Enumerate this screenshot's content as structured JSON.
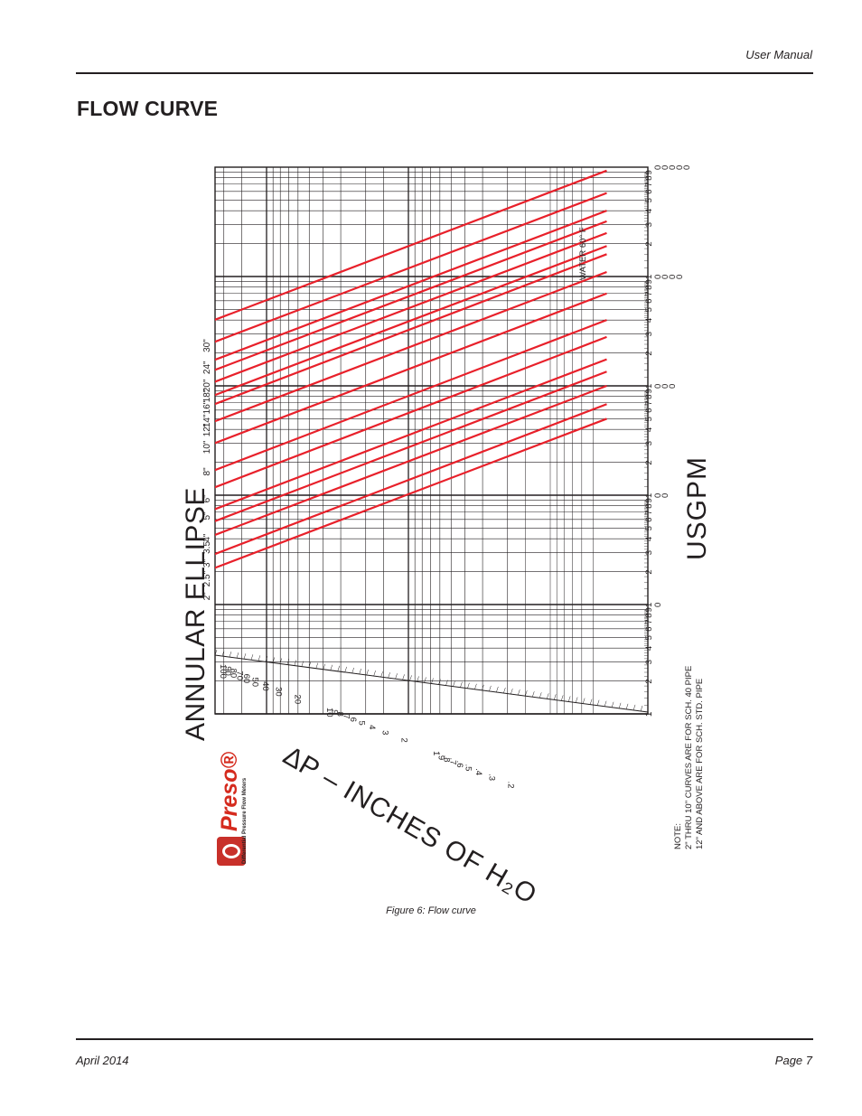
{
  "header": {
    "manual_label": "User Manual"
  },
  "section_title": "FLOW CURVE",
  "figure": {
    "caption": "Figure 6:  Flow curve",
    "title": "ANNULAR ELLIPSE",
    "x_axis_label": "USGPM",
    "y_axis_label": "∆P – INCHES OF H₂O",
    "condition_label": "WATER 60° F",
    "note_lines": [
      "NOTE:",
      "2\" THRU 10\" CURVES ARE FOR SCH. 40 PIPE",
      "12\" AND ABOVE ARE FOR SCH. STD. PIPE"
    ],
    "logo": {
      "word": "Preso",
      "registered": "®",
      "tagline": "Differential Pressure Flow Meters"
    },
    "x_ticks": {
      "digits": [
        "1",
        "2",
        "3",
        "4",
        "5",
        "6",
        "7",
        "8",
        "9"
      ],
      "decade_zeros": [
        "",
        "0",
        "00",
        "000",
        "0000",
        "00000"
      ]
    },
    "dp_ticks": [
      "100",
      "90",
      "80",
      "70",
      "60",
      "50",
      "40",
      "30",
      "20",
      "10",
      "9",
      "8",
      "7",
      "6",
      "5",
      "4",
      "3",
      "2",
      "1",
      ".9",
      ".8",
      ".7",
      ".6",
      ".5",
      ".4",
      ".3",
      ".2"
    ]
  },
  "chart_data": {
    "type": "line",
    "title": "ANNULAR ELLIPSE",
    "xlabel": "USGPM",
    "ylabel": "∆P – INCHES OF H₂O",
    "x_scale": "log",
    "xlim": [
      1,
      100000
    ],
    "dp_scale": "log",
    "dp_range": [
      0.2,
      100
    ],
    "grid": true,
    "line_color": "#e8202a",
    "series": [
      {
        "name": "2\"",
        "points": [
          [
            10.5,
            100
          ],
          [
            500,
            0.04
          ]
        ]
      },
      {
        "name": "2.5\"",
        "points": [
          [
            14,
            100
          ],
          [
            680,
            0.04
          ]
        ]
      },
      {
        "name": "3\"",
        "points": [
          [
            21,
            100
          ],
          [
            1000,
            0.04
          ]
        ]
      },
      {
        "name": "3.5\"",
        "points": [
          [
            28,
            100
          ],
          [
            1350,
            0.04
          ]
        ]
      },
      {
        "name": "4\"",
        "points": [
          [
            36,
            100
          ],
          [
            1750,
            0.04
          ]
        ]
      },
      {
        "name": "5\"",
        "points": [
          [
            57,
            100
          ],
          [
            2800,
            0.04
          ]
        ]
      },
      {
        "name": "6\"",
        "points": [
          [
            82,
            100
          ],
          [
            4000,
            0.04
          ]
        ]
      },
      {
        "name": "8\"",
        "points": [
          [
            145,
            100
          ],
          [
            7000,
            0.04
          ]
        ]
      },
      {
        "name": "10\"",
        "points": [
          [
            230,
            100
          ],
          [
            11000,
            0.04
          ]
        ]
      },
      {
        "name": "12\"",
        "points": [
          [
            330,
            100
          ],
          [
            16000,
            0.04
          ]
        ]
      },
      {
        "name": "14\"",
        "points": [
          [
            400,
            100
          ],
          [
            19000,
            0.04
          ]
        ]
      },
      {
        "name": "16\"",
        "points": [
          [
            530,
            100
          ],
          [
            25000,
            0.04
          ]
        ]
      },
      {
        "name": "18\"",
        "points": [
          [
            680,
            100
          ],
          [
            32000,
            0.04
          ]
        ]
      },
      {
        "name": "20\"",
        "points": [
          [
            840,
            100
          ],
          [
            40000,
            0.04
          ]
        ]
      },
      {
        "name": "24\"",
        "points": [
          [
            1230,
            100
          ],
          [
            58000,
            0.04
          ]
        ]
      },
      {
        "name": "30\"",
        "points": [
          [
            1950,
            100
          ],
          [
            93000,
            0.04
          ]
        ]
      }
    ]
  },
  "footer": {
    "date": "April 2014",
    "page": "Page 7"
  }
}
